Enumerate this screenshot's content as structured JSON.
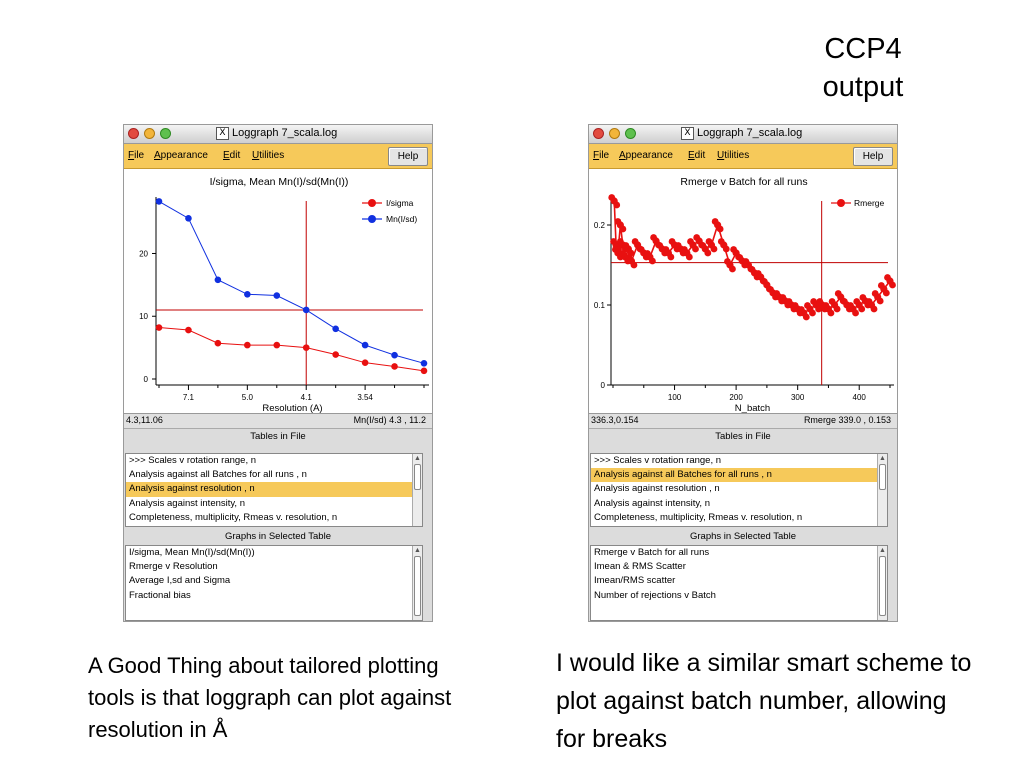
{
  "slide_title": "CCP4 output",
  "windows": [
    {
      "title": "Loggraph 7_scala.log",
      "menu": [
        "File",
        "Appearance",
        "Edit",
        "Utilities"
      ],
      "help": "Help",
      "coord_left": "4.3,11.06",
      "coord_right": "Mn(I/sd) 4.3 , 11.2",
      "tables_header": "Tables in File",
      "tables": [
        ">>> Scales v rotation range, n",
        "Analysis against all Batches for all runs , n",
        "Analysis against resolution , n",
        "Analysis against intensity, n",
        "Completeness, multiplicity, Rmeas v. resolution, n"
      ],
      "tables_selected": 2,
      "graphs_header": "Graphs in Selected Table",
      "graphs": [
        "I/sigma, Mean Mn(I)/sd(Mn(I))",
        "Rmerge v Resolution",
        "Average I,sd and Sigma",
        "Fractional bias"
      ]
    },
    {
      "title": "Loggraph 7_scala.log",
      "menu": [
        "File",
        "Appearance",
        "Edit",
        "Utilities"
      ],
      "help": "Help",
      "coord_left": "336.3,0.154",
      "coord_right": "Rmerge 339.0 , 0.153",
      "tables_header": "Tables in File",
      "tables": [
        ">>> Scales v rotation range, n",
        "Analysis against all Batches for all runs , n",
        "Analysis against resolution , n",
        "Analysis against intensity, n",
        "Completeness, multiplicity, Rmeas v. resolution, n"
      ],
      "tables_selected": 1,
      "graphs_header": "Graphs in Selected Table",
      "graphs": [
        "Rmerge v Batch for all runs",
        "Imean & RMS Scatter",
        "Imean/RMS scatter",
        "Number of rejections v Batch"
      ]
    }
  ],
  "chart_data": [
    {
      "type": "line",
      "title": "I/sigma, Mean Mn(I)/sd(Mn(I))",
      "xlabel": "Resolution (A)",
      "ylabel": "",
      "x_tick_labels": [
        "7.1",
        "5.0",
        "4.1",
        "3.54"
      ],
      "y_ticks": [
        0,
        10,
        20
      ],
      "ylim": [
        0,
        29
      ],
      "legend_position": "top-right",
      "crosshair": {
        "x_index": 5,
        "y": 11
      },
      "series": [
        {
          "name": "I/sigma",
          "color": "#e81010",
          "values": [
            8.2,
            7.8,
            5.7,
            5.4,
            5.4,
            5.0,
            3.9,
            2.6,
            2.0,
            1.3
          ]
        },
        {
          "name": "Mn(I/sd)",
          "color": "#1030e0",
          "values": [
            28.3,
            25.6,
            15.8,
            13.5,
            13.3,
            11.0,
            8.0,
            5.4,
            3.8,
            2.5
          ]
        }
      ]
    },
    {
      "type": "line",
      "title": "Rmerge v Batch for all runs",
      "xlabel": "N_batch",
      "ylabel": "",
      "x_ticks": [
        100,
        200,
        300,
        400
      ],
      "y_ticks": [
        0,
        0.1,
        0.2
      ],
      "xlim": [
        0,
        450
      ],
      "ylim": [
        0,
        0.235
      ],
      "legend_position": "top-right",
      "crosshair": {
        "x": 339,
        "y": 0.153
      },
      "series": [
        {
          "name": "Rmerge",
          "color": "#e81010",
          "x": [
            2,
            5,
            8,
            12,
            16,
            20,
            25,
            30,
            40,
            50,
            60,
            70,
            80,
            90,
            100,
            110,
            120,
            130,
            140,
            150,
            160,
            170,
            180,
            190,
            200,
            210,
            220,
            230,
            240,
            250,
            260,
            270,
            280,
            290,
            300,
            310,
            320,
            330,
            340,
            350,
            360,
            370,
            380,
            390,
            400,
            410,
            420,
            430,
            440,
            450
          ],
          "y": [
            0.23,
            0.175,
            0.165,
            0.2,
            0.175,
            0.16,
            0.17,
            0.155,
            0.175,
            0.165,
            0.16,
            0.18,
            0.17,
            0.165,
            0.175,
            0.17,
            0.165,
            0.175,
            0.18,
            0.17,
            0.175,
            0.2,
            0.175,
            0.15,
            0.165,
            0.155,
            0.15,
            0.14,
            0.135,
            0.125,
            0.115,
            0.11,
            0.105,
            0.1,
            0.095,
            0.09,
            0.095,
            0.1,
            0.1,
            0.095,
            0.1,
            0.11,
            0.1,
            0.095,
            0.1,
            0.105,
            0.1,
            0.11,
            0.12,
            0.13
          ]
        }
      ]
    }
  ],
  "captions": [
    "A Good Thing about tailored plotting tools is that loggraph can plot against resolution in Å",
    "I would like a similar smart scheme to plot against batch number, allowing for breaks"
  ]
}
